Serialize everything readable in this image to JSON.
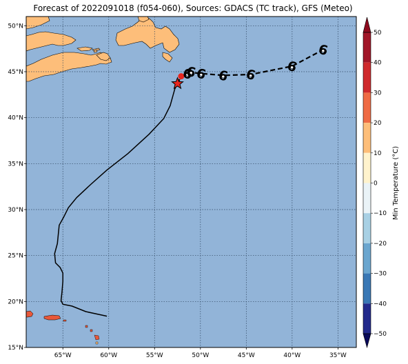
{
  "title": "Forecast of 2022091018 (f054-060), Sources: GDACS (TC track), GFS (Meteo)",
  "colors": {
    "ocean": "#92b4d8",
    "land": "#fdbe7a",
    "land_warm": "#e8583a",
    "grid": "#2f4660",
    "track": "#000000",
    "forecast_track": "#000000",
    "star": "#e8261f",
    "current_position_marker": "#e8261f"
  },
  "map": {
    "projection": "PlateCarree",
    "lon_range": [
      -69,
      -33
    ],
    "lat_range": [
      15,
      51
    ],
    "lon_ticks": [
      {
        "value": -65,
        "label": "65°W"
      },
      {
        "value": -60,
        "label": "60°W"
      },
      {
        "value": -55,
        "label": "55°W"
      },
      {
        "value": -50,
        "label": "50°W"
      },
      {
        "value": -45,
        "label": "45°W"
      },
      {
        "value": -40,
        "label": "40°W"
      },
      {
        "value": -35,
        "label": "35°W"
      }
    ],
    "lat_ticks": [
      {
        "value": 15,
        "label": "15°N"
      },
      {
        "value": 20,
        "label": "20°N"
      },
      {
        "value": 25,
        "label": "25°N"
      },
      {
        "value": 30,
        "label": "30°N"
      },
      {
        "value": 35,
        "label": "35°N"
      },
      {
        "value": 40,
        "label": "40°N"
      },
      {
        "value": 45,
        "label": "45°N"
      },
      {
        "value": 50,
        "label": "50°N"
      }
    ],
    "gridlines": true
  },
  "track": {
    "past": [
      [
        -60.2,
        18.4
      ],
      [
        -62.5,
        18.9
      ],
      [
        -64.0,
        19.5
      ],
      [
        -65.0,
        19.7
      ],
      [
        -65.2,
        20.1
      ],
      [
        -65.1,
        21.0
      ],
      [
        -65.0,
        22.2
      ],
      [
        -65.0,
        23.1
      ],
      [
        -65.3,
        23.7
      ],
      [
        -65.8,
        24.2
      ],
      [
        -65.9,
        25.2
      ],
      [
        -65.6,
        26.3
      ],
      [
        -65.5,
        27.3
      ],
      [
        -65.4,
        28.3
      ],
      [
        -64.9,
        29.2
      ],
      [
        -64.4,
        30.2
      ],
      [
        -63.5,
        31.3
      ],
      [
        -62.0,
        32.7
      ],
      [
        -60.2,
        34.3
      ],
      [
        -57.9,
        36.1
      ],
      [
        -55.6,
        38.2
      ],
      [
        -54.0,
        39.9
      ],
      [
        -53.3,
        41.3
      ],
      [
        -52.8,
        43.1
      ],
      [
        -52.5,
        43.7
      ]
    ],
    "current_position": [
      -52.5,
      43.7
    ],
    "forecast": [
      [
        -52.5,
        43.7
      ],
      [
        -52.1,
        44.5
      ],
      [
        -51.6,
        44.7
      ],
      [
        -50.9,
        44.9
      ],
      [
        -49.9,
        44.8
      ],
      [
        -47.5,
        44.6
      ],
      [
        -44.5,
        44.7
      ],
      [
        -40.0,
        45.6
      ],
      [
        -36.6,
        47.4
      ]
    ],
    "storm_symbols": [
      {
        "lon": -51.4,
        "lat": 44.8,
        "symbol": "6"
      },
      {
        "lon": -51.0,
        "lat": 45.0,
        "symbol": "6"
      },
      {
        "lon": -49.9,
        "lat": 44.8,
        "symbol": "6"
      },
      {
        "lon": -47.5,
        "lat": 44.6,
        "symbol": "6"
      },
      {
        "lon": -44.5,
        "lat": 44.7,
        "symbol": "6"
      },
      {
        "lon": -40.0,
        "lat": 45.6,
        "symbol": "6"
      },
      {
        "lon": -36.6,
        "lat": 47.4,
        "symbol": "6"
      }
    ]
  },
  "colorbar": {
    "label": "Min Temperature (°C)",
    "min": -50,
    "max": 50,
    "ticks": [
      {
        "value": 50,
        "label": "50"
      },
      {
        "value": 40,
        "label": "40"
      },
      {
        "value": 30,
        "label": "30"
      },
      {
        "value": 20,
        "label": "20"
      },
      {
        "value": 10,
        "label": "10"
      },
      {
        "value": 0,
        "label": "0"
      },
      {
        "value": -10,
        "label": "−10"
      },
      {
        "value": -20,
        "label": "−20"
      },
      {
        "value": -30,
        "label": "−30"
      },
      {
        "value": -40,
        "label": "−40"
      },
      {
        "value": -50,
        "label": "−50"
      }
    ],
    "bands": [
      {
        "from": 40,
        "to": 50,
        "color": "#a11628"
      },
      {
        "from": 30,
        "to": 40,
        "color": "#cf2a2d"
      },
      {
        "from": 20,
        "to": 30,
        "color": "#ef6b45"
      },
      {
        "from": 10,
        "to": 20,
        "color": "#fdbe7a"
      },
      {
        "from": 0,
        "to": 10,
        "color": "#fff3cd"
      },
      {
        "from": -10,
        "to": 0,
        "color": "#eaf3f7"
      },
      {
        "from": -20,
        "to": -10,
        "color": "#a8d0e4"
      },
      {
        "from": -30,
        "to": -20,
        "color": "#6ba6cf"
      },
      {
        "from": -40,
        "to": -30,
        "color": "#3a78b5"
      },
      {
        "from": -50,
        "to": -40,
        "color": "#232a8c"
      }
    ],
    "over_color": "#8e0a1e",
    "under_color": "#0a0a5a"
  }
}
